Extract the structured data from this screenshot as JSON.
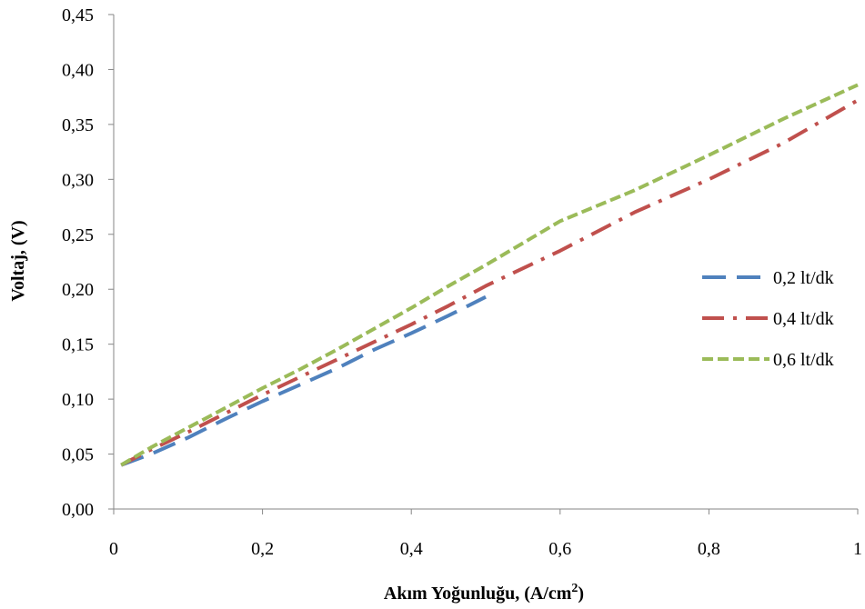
{
  "chart_data": {
    "type": "line",
    "title": "",
    "xlabel": "Akım Yoğunluğu, (A/cm",
    "xlabel_sup": "2",
    "xlabel_suffix": ")",
    "ylabel": "Voltaj, (V)",
    "xlim": [
      0,
      1
    ],
    "ylim": [
      0,
      0.45
    ],
    "x_ticks": [
      "0",
      "0,2",
      "0,4",
      "0,6",
      "0,8",
      "1"
    ],
    "x_tick_values": [
      0,
      0.2,
      0.4,
      0.6,
      0.8,
      1
    ],
    "y_ticks": [
      "0,00",
      "0,05",
      "0,10",
      "0,15",
      "0,20",
      "0,25",
      "0,30",
      "0,35",
      "0,40",
      "0,45"
    ],
    "y_tick_values": [
      0,
      0.05,
      0.1,
      0.15,
      0.2,
      0.25,
      0.3,
      0.35,
      0.4,
      0.45
    ],
    "grid": false,
    "legend_position": "right",
    "series": [
      {
        "name": "0,2 lt/dk",
        "color": "#4F81BD",
        "dash": "long-dash",
        "x": [
          0.01,
          0.05,
          0.1,
          0.15,
          0.2,
          0.25,
          0.3,
          0.35,
          0.4,
          0.45,
          0.5
        ],
        "y": [
          0.04,
          0.05,
          0.065,
          0.082,
          0.098,
          0.113,
          0.128,
          0.145,
          0.16,
          0.176,
          0.193
        ]
      },
      {
        "name": "0,4 lt/dk",
        "color": "#C0504D",
        "dash": "dash-dot",
        "x": [
          0.01,
          0.05,
          0.1,
          0.15,
          0.2,
          0.25,
          0.3,
          0.35,
          0.4,
          0.45,
          0.5,
          0.6,
          0.7,
          0.8,
          0.9,
          1.0
        ],
        "y": [
          0.04,
          0.054,
          0.07,
          0.087,
          0.104,
          0.12,
          0.136,
          0.152,
          0.168,
          0.185,
          0.203,
          0.235,
          0.27,
          0.3,
          0.333,
          0.372
        ]
      },
      {
        "name": "0,6 lt/dk",
        "color": "#9BBB59",
        "dash": "short-dash",
        "x": [
          0.01,
          0.05,
          0.1,
          0.15,
          0.2,
          0.25,
          0.3,
          0.35,
          0.4,
          0.45,
          0.5,
          0.6,
          0.7,
          0.8,
          0.9,
          1.0
        ],
        "y": [
          0.04,
          0.056,
          0.074,
          0.092,
          0.11,
          0.127,
          0.145,
          0.164,
          0.183,
          0.203,
          0.222,
          0.262,
          0.29,
          0.322,
          0.355,
          0.386
        ]
      }
    ]
  }
}
